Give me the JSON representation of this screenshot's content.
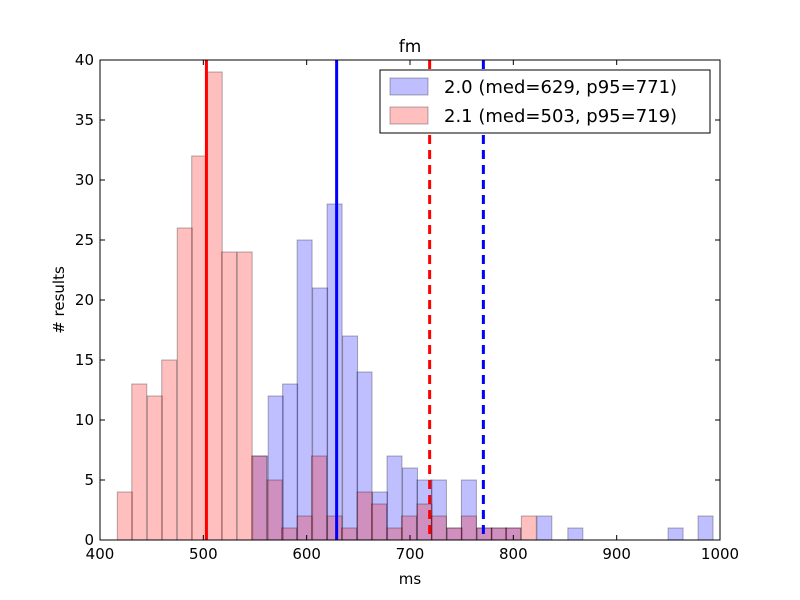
{
  "chart_data": {
    "type": "histogram",
    "title": "fm",
    "xlabel": "ms",
    "ylabel": "# results",
    "xlim": [
      400,
      1000
    ],
    "ylim": [
      0,
      40
    ],
    "xticks": [
      "400",
      "500",
      "600",
      "700",
      "800",
      "900",
      "1000"
    ],
    "yticks": [
      "0",
      "5",
      "10",
      "15",
      "20",
      "25",
      "30",
      "35",
      "40"
    ],
    "grid": false,
    "legend_position": "top-right",
    "series": [
      {
        "name": "2.0 (med=629, p95=771)",
        "color": "#0000ff",
        "bin_width": 14.5,
        "bins": [
          {
            "x": 555,
            "count": 7
          },
          {
            "x": 570,
            "count": 12
          },
          {
            "x": 584,
            "count": 13
          },
          {
            "x": 598,
            "count": 25
          },
          {
            "x": 613,
            "count": 21
          },
          {
            "x": 627,
            "count": 28
          },
          {
            "x": 642,
            "count": 17
          },
          {
            "x": 656,
            "count": 14
          },
          {
            "x": 671,
            "count": 4
          },
          {
            "x": 685,
            "count": 7
          },
          {
            "x": 700,
            "count": 6
          },
          {
            "x": 714,
            "count": 5
          },
          {
            "x": 728,
            "count": 5
          },
          {
            "x": 743,
            "count": 1
          },
          {
            "x": 757,
            "count": 5
          },
          {
            "x": 772,
            "count": 1
          },
          {
            "x": 786,
            "count": 1
          },
          {
            "x": 800,
            "count": 1
          },
          {
            "x": 830,
            "count": 2
          },
          {
            "x": 860,
            "count": 1
          },
          {
            "x": 957,
            "count": 1
          },
          {
            "x": 986,
            "count": 2
          }
        ],
        "median": 629,
        "p95": 771
      },
      {
        "name": "2.1 (med=503, p95=719)",
        "color": "#ff0000",
        "bin_width": 14.5,
        "bins": [
          {
            "x": 424,
            "count": 4
          },
          {
            "x": 438,
            "count": 13
          },
          {
            "x": 453,
            "count": 12
          },
          {
            "x": 467,
            "count": 15
          },
          {
            "x": 482,
            "count": 26
          },
          {
            "x": 496,
            "count": 32
          },
          {
            "x": 511,
            "count": 39
          },
          {
            "x": 525,
            "count": 24
          },
          {
            "x": 540,
            "count": 24
          },
          {
            "x": 554,
            "count": 7
          },
          {
            "x": 569,
            "count": 5
          },
          {
            "x": 583,
            "count": 1
          },
          {
            "x": 598,
            "count": 2
          },
          {
            "x": 612,
            "count": 7
          },
          {
            "x": 627,
            "count": 2
          },
          {
            "x": 641,
            "count": 1
          },
          {
            "x": 656,
            "count": 4
          },
          {
            "x": 670,
            "count": 3
          },
          {
            "x": 685,
            "count": 1
          },
          {
            "x": 699,
            "count": 2
          },
          {
            "x": 714,
            "count": 3
          },
          {
            "x": 728,
            "count": 2
          },
          {
            "x": 743,
            "count": 1
          },
          {
            "x": 757,
            "count": 2
          },
          {
            "x": 772,
            "count": 1
          },
          {
            "x": 786,
            "count": 1
          },
          {
            "x": 800,
            "count": 1
          },
          {
            "x": 815,
            "count": 2
          }
        ],
        "median": 503,
        "p95": 719
      }
    ]
  }
}
